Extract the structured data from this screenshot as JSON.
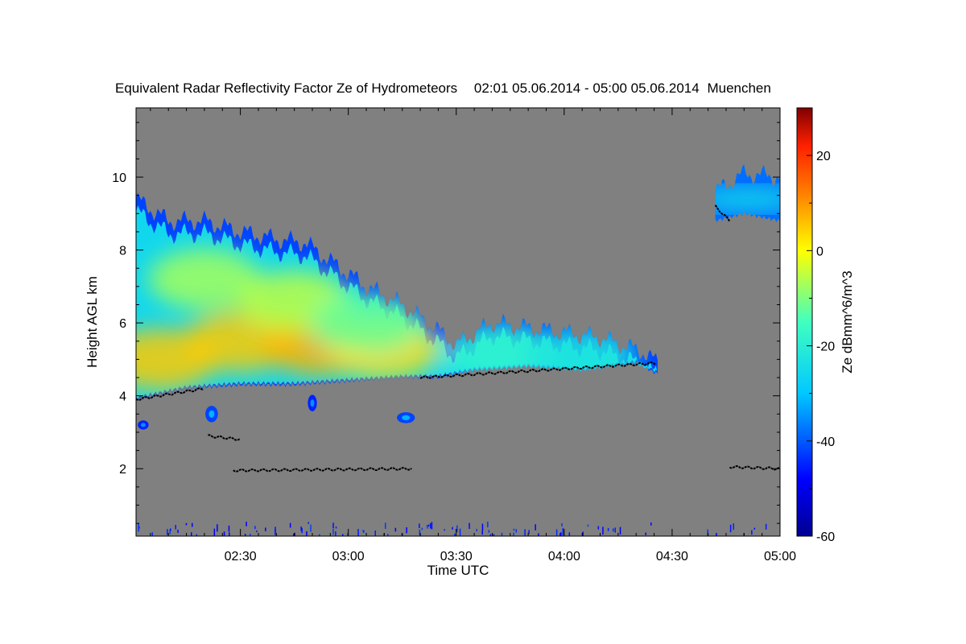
{
  "chart_data": {
    "type": "heatmap",
    "title": "Equivalent Radar Reflectivity Factor Ze of Hydrometeors",
    "period": "02:01 05.06.2014 - 05:00 05.06.2014",
    "location": "Muenchen",
    "xlabel": "Time UTC",
    "ylabel": "Height AGL km",
    "xlim_minutes_utc": [
      121,
      300
    ],
    "ylim_km": [
      0.15,
      11.9
    ],
    "xticks": [
      {
        "min": 150,
        "label": "02:30"
      },
      {
        "min": 180,
        "label": "03:00"
      },
      {
        "min": 210,
        "label": "03:30"
      },
      {
        "min": 240,
        "label": "04:00"
      },
      {
        "min": 270,
        "label": "04:30"
      },
      {
        "min": 300,
        "label": "05:00"
      }
    ],
    "yticks": [
      {
        "km": 2,
        "label": "2"
      },
      {
        "km": 4,
        "label": "4"
      },
      {
        "km": 6,
        "label": "6"
      },
      {
        "km": 8,
        "label": "8"
      },
      {
        "km": 10,
        "label": "10"
      }
    ],
    "colorbar": {
      "label": "Ze dBmm^6/m^3",
      "range": [
        -60,
        30
      ],
      "ticks": [
        {
          "v": -60,
          "label": "-60"
        },
        {
          "v": -40,
          "label": "-40"
        },
        {
          "v": -20,
          "label": "-20"
        },
        {
          "v": 0,
          "label": "0"
        },
        {
          "v": 20,
          "label": "20"
        }
      ],
      "stops": [
        {
          "v": -60,
          "color": "#00008f"
        },
        {
          "v": -48,
          "color": "#0000ff"
        },
        {
          "v": -30,
          "color": "#00c8ff"
        },
        {
          "v": -15,
          "color": "#40ffc0"
        },
        {
          "v": 0,
          "color": "#ffff00"
        },
        {
          "v": 12,
          "color": "#ff8000"
        },
        {
          "v": 22,
          "color": "#ff2000"
        },
        {
          "v": 30,
          "color": "#800000"
        }
      ]
    },
    "background_color": "#808080",
    "main_cloud": {
      "base_km": [
        [
          121,
          3.9
        ],
        [
          135,
          4.2
        ],
        [
          150,
          4.3
        ],
        [
          165,
          4.3
        ],
        [
          180,
          4.4
        ],
        [
          195,
          4.5
        ],
        [
          205,
          4.5
        ],
        [
          215,
          4.7
        ],
        [
          230,
          4.8
        ],
        [
          245,
          4.7
        ],
        [
          260,
          4.9
        ],
        [
          266,
          4.6
        ]
      ],
      "top_km": [
        [
          121,
          9.4
        ],
        [
          130,
          8.8
        ],
        [
          140,
          8.8
        ],
        [
          150,
          8.5
        ],
        [
          160,
          8.3
        ],
        [
          168,
          8.2
        ],
        [
          175,
          7.7
        ],
        [
          185,
          7.0
        ],
        [
          195,
          6.5
        ],
        [
          205,
          5.8
        ],
        [
          210,
          5.4
        ],
        [
          220,
          6.0
        ],
        [
          235,
          5.8
        ],
        [
          250,
          5.6
        ],
        [
          262,
          5.2
        ],
        [
          266,
          4.9
        ]
      ],
      "core": [
        {
          "t": 128,
          "h": 5.0,
          "ze": 5
        },
        {
          "t": 150,
          "h": 5.5,
          "ze": 5
        },
        {
          "t": 172,
          "h": 5.4,
          "ze": 7
        },
        {
          "t": 190,
          "h": 5.3,
          "ze": 3
        },
        {
          "t": 140,
          "h": 7.2,
          "ze": -7
        },
        {
          "t": 165,
          "h": 6.6,
          "ze": -5
        },
        {
          "t": 185,
          "h": 6.0,
          "ze": -12
        },
        {
          "t": 222,
          "h": 5.2,
          "ze": -18
        },
        {
          "t": 245,
          "h": 5.1,
          "ze": -22
        }
      ]
    },
    "upper_cloud": {
      "base_km": [
        [
          282,
          8.8
        ],
        [
          290,
          9.0
        ],
        [
          300,
          8.8
        ]
      ],
      "top_km": [
        [
          282,
          9.6
        ],
        [
          290,
          10.1
        ],
        [
          300,
          10.0
        ]
      ]
    },
    "echo_patches": [
      {
        "t": 142,
        "h": 3.5,
        "wt": 3.5,
        "wh": 0.45,
        "ze": -42
      },
      {
        "t": 170,
        "h": 3.8,
        "wt": 2.5,
        "wh": 0.45,
        "ze": -45
      },
      {
        "t": 196,
        "h": 3.4,
        "wt": 5.0,
        "wh": 0.3,
        "ze": -42
      },
      {
        "t": 123,
        "h": 3.2,
        "wt": 3.0,
        "wh": 0.25,
        "ze": -45
      }
    ],
    "cloud_base_detections_km": [
      {
        "t": [
          121,
          140
        ],
        "h": [
          3.9,
          4.2
        ]
      },
      {
        "t": [
          141,
          150
        ],
        "h": [
          2.9,
          2.8
        ]
      },
      {
        "t": [
          148,
          198
        ],
        "h": [
          1.95,
          2.0
        ]
      },
      {
        "t": [
          200,
          266
        ],
        "h": [
          4.5,
          4.9
        ]
      },
      {
        "t": [
          282,
          286
        ],
        "h": [
          9.2,
          8.8
        ]
      },
      {
        "t": [
          286,
          300
        ],
        "h": [
          2.05,
          2.0
        ]
      }
    ]
  }
}
